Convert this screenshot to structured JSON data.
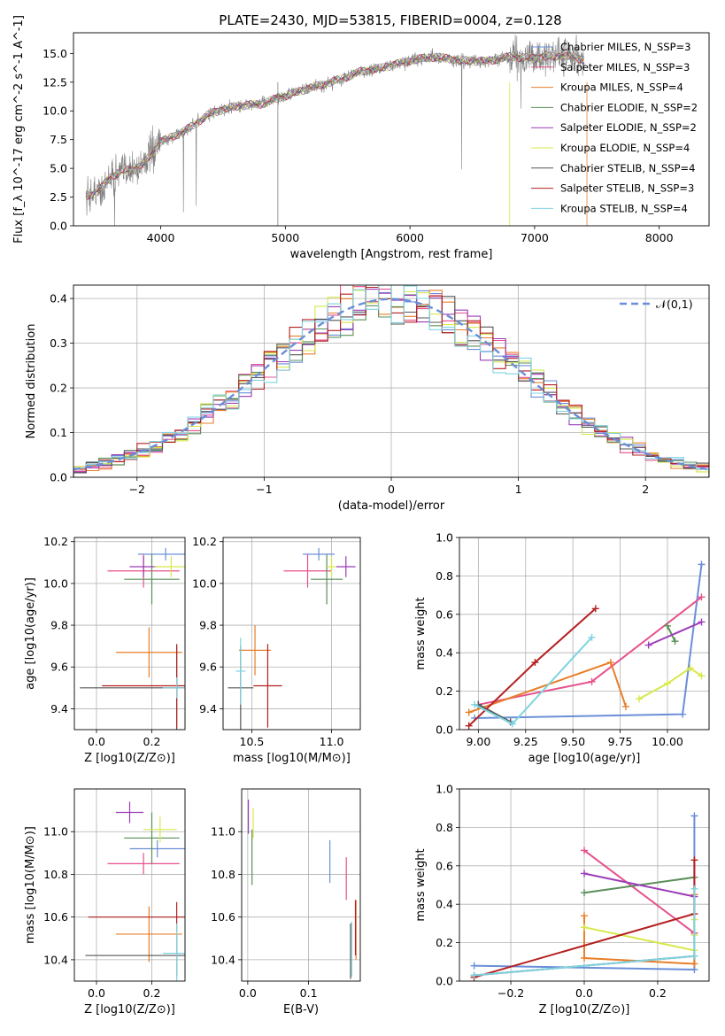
{
  "figure": {
    "title": "PLATE=2430, MJD=53815, FIBERID=0004, z=0.128"
  },
  "chart_data": [
    {
      "id": "spectrum",
      "type": "line",
      "title": "PLATE=2430, MJD=53815, FIBERID=0004, z=0.128",
      "xlabel": "wavelength [Angstrom, rest frame]",
      "ylabel": "Flux [f_λ 10^-17 erg cm^-2 s^-1 A^-1]",
      "xlim": [
        3300,
        8400
      ],
      "ylim": [
        0,
        16.8
      ],
      "xticks": [
        4000,
        5000,
        6000,
        7000,
        8000
      ],
      "yticks": [
        0.0,
        2.5,
        5.0,
        7.5,
        10.0,
        12.5,
        15.0
      ],
      "legend_position": "top-right",
      "data_color": "#808080",
      "data_envelope": {
        "x": [
          3400,
          3500,
          3600,
          3700,
          3800,
          3900,
          4000,
          4200,
          4400,
          4600,
          4800,
          5000,
          5200,
          5400,
          5600,
          5800,
          6000,
          6200,
          6400,
          6600,
          6800,
          7000,
          7200,
          7400
        ],
        "y": [
          2.6,
          3.0,
          4.3,
          4.8,
          4.9,
          5.9,
          7.3,
          8.3,
          9.8,
          10.4,
          10.6,
          11.3,
          12.0,
          12.6,
          13.4,
          13.8,
          14.4,
          14.7,
          14.4,
          14.3,
          14.7,
          14.6,
          14.8,
          14.5
        ]
      },
      "series": [
        {
          "name": "Chabrier MILES, N_SSP=3",
          "color": "#6a8fd8"
        },
        {
          "name": "Salpeter MILES, N_SSP=3",
          "color": "#e6508c"
        },
        {
          "name": "Kroupa MILES, N_SSP=4",
          "color": "#e87f2a"
        },
        {
          "name": "Chabrier ELODIE, N_SSP=2",
          "color": "#5a8f5a"
        },
        {
          "name": "Salpeter ELODIE, N_SSP=2",
          "color": "#9b3cb8"
        },
        {
          "name": "Kroupa ELODIE, N_SSP=4",
          "color": "#d8e84a"
        },
        {
          "name": "Chabrier STELIB, N_SSP=4",
          "color": "#555555"
        },
        {
          "name": "Salpeter STELIB, N_SSP=3",
          "color": "#b52020"
        },
        {
          "name": "Kroupa STELIB, N_SSP=4",
          "color": "#7fd3e0"
        }
      ]
    },
    {
      "id": "residual-hist",
      "type": "line",
      "xlabel": "(data-model)/error",
      "ylabel": "Normed distribution",
      "xlim": [
        -2.5,
        2.5
      ],
      "ylim": [
        0,
        0.43
      ],
      "xticks": [
        -2,
        -1,
        0,
        1,
        2
      ],
      "yticks": [
        0.0,
        0.1,
        0.2,
        0.3,
        0.4
      ],
      "grid": true,
      "legend": "𝒩(0,1)",
      "legend_position": "top-right",
      "series": [
        {
          "name": "𝒩(0,1)",
          "kind": "gaussian",
          "mean": 0,
          "sigma": 1,
          "color": "#6a8fd8"
        }
      ],
      "hist_bin_width": 0.1,
      "hist_colors": [
        "#6a8fd8",
        "#e6508c",
        "#e87f2a",
        "#5a8f5a",
        "#9b3cb8",
        "#d8e84a",
        "#555555",
        "#b52020",
        "#7fd3e0"
      ]
    },
    {
      "id": "age-vs-Z",
      "type": "scatter",
      "xlabel": "Z [log10(Z/Z⊙)]",
      "ylabel": "age  [log10(age/yr)]",
      "xlim": [
        -0.08,
        0.32
      ],
      "ylim": [
        9.3,
        10.22
      ],
      "xticks": [
        0.0,
        0.2
      ],
      "yticks": [
        9.4,
        9.6,
        9.8,
        10.0,
        10.2
      ],
      "grid": true,
      "points": [
        {
          "x": 0.25,
          "y": 10.14,
          "xerr": 0.1,
          "yerr": 0.03,
          "color": "#6a8fd8"
        },
        {
          "x": 0.17,
          "y": 10.06,
          "xerr": 0.13,
          "yerr": 0.08,
          "color": "#e6508c"
        },
        {
          "x": 0.19,
          "y": 9.67,
          "xerr": 0.12,
          "yerr": 0.12,
          "color": "#e87f2a"
        },
        {
          "x": 0.2,
          "y": 10.02,
          "xerr": 0.1,
          "yerr": 0.12,
          "color": "#5a8f5a"
        },
        {
          "x": 0.17,
          "y": 10.08,
          "xerr": 0.05,
          "yerr": 0.05,
          "color": "#9b3cb8"
        },
        {
          "x": 0.27,
          "y": 10.08,
          "xerr": 0.06,
          "yerr": 0.05,
          "color": "#d8e84a"
        },
        {
          "x": 0.29,
          "y": 9.5,
          "xerr": 0.35,
          "yerr": 0.2,
          "color": "#555555"
        },
        {
          "x": 0.29,
          "y": 9.51,
          "xerr": 0.27,
          "yerr": 0.2,
          "color": "#b52020"
        },
        {
          "x": 0.29,
          "y": 9.5,
          "xerr": 0.05,
          "yerr": 0.05,
          "color": "#7fd3e0"
        }
      ]
    },
    {
      "id": "age-vs-mass",
      "type": "scatter",
      "xlabel": "mass [log10(M/M⊙)]",
      "ylabel": "",
      "xlim": [
        10.32,
        11.18
      ],
      "ylim": [
        9.3,
        10.22
      ],
      "xticks": [
        10.5,
        11.0
      ],
      "yticks": [
        9.4,
        9.6,
        9.8,
        10.0,
        10.2
      ],
      "grid": true,
      "points": [
        {
          "x": 10.92,
          "y": 10.14,
          "xerr": 0.1,
          "yerr": 0.03,
          "color": "#6a8fd8"
        },
        {
          "x": 10.85,
          "y": 10.06,
          "xerr": 0.15,
          "yerr": 0.08,
          "color": "#e6508c"
        },
        {
          "x": 10.52,
          "y": 9.68,
          "xerr": 0.1,
          "yerr": 0.12,
          "color": "#e87f2a"
        },
        {
          "x": 10.97,
          "y": 10.02,
          "xerr": 0.1,
          "yerr": 0.12,
          "color": "#5a8f5a"
        },
        {
          "x": 11.09,
          "y": 10.08,
          "xerr": 0.06,
          "yerr": 0.05,
          "color": "#9b3cb8"
        },
        {
          "x": 11.0,
          "y": 10.08,
          "xerr": 0.03,
          "yerr": 0.05,
          "color": "#d8e84a"
        },
        {
          "x": 10.43,
          "y": 9.5,
          "xerr": 0.08,
          "yerr": 0.2,
          "color": "#555555"
        },
        {
          "x": 10.6,
          "y": 9.51,
          "xerr": 0.09,
          "yerr": 0.2,
          "color": "#b52020"
        },
        {
          "x": 10.43,
          "y": 9.58,
          "xerr": 0.03,
          "yerr": 0.16,
          "color": "#7fd3e0"
        }
      ]
    },
    {
      "id": "massweight-vs-age",
      "type": "line",
      "xlabel": "age  [log10(age/yr)]",
      "ylabel": "mass weight",
      "xlim": [
        8.9,
        10.22
      ],
      "ylim": [
        0,
        1.0
      ],
      "xticks": [
        9.0,
        9.25,
        9.5,
        9.75,
        10.0
      ],
      "yticks": [
        0.0,
        0.2,
        0.4,
        0.6,
        0.8,
        1.0
      ],
      "grid": true,
      "series": [
        {
          "color": "#6a8fd8",
          "x": [
            8.98,
            10.08,
            10.18
          ],
          "y": [
            0.06,
            0.08,
            0.86
          ]
        },
        {
          "color": "#e6508c",
          "x": [
            9.0,
            9.6,
            10.18
          ],
          "y": [
            0.13,
            0.25,
            0.69
          ]
        },
        {
          "color": "#e87f2a",
          "x": [
            8.95,
            9.7,
            9.78
          ],
          "y": [
            0.09,
            0.35,
            0.12
          ]
        },
        {
          "color": "#5a8f5a",
          "x": [
            10.0,
            10.04
          ],
          "y": [
            0.54,
            0.46
          ]
        },
        {
          "color": "#9b3cb8",
          "x": [
            9.9,
            10.18
          ],
          "y": [
            0.44,
            0.56
          ]
        },
        {
          "color": "#d8e84a",
          "x": [
            9.85,
            10.0,
            10.12,
            10.18
          ],
          "y": [
            0.16,
            0.24,
            0.32,
            0.28
          ]
        },
        {
          "color": "#555555",
          "x": [
            9.0,
            9.17
          ],
          "y": [
            0.13,
            0.04
          ]
        },
        {
          "color": "#b52020",
          "x": [
            8.95,
            9.3,
            9.62
          ],
          "y": [
            0.02,
            0.35,
            0.63
          ]
        },
        {
          "color": "#7fd3e0",
          "x": [
            8.98,
            9.18,
            9.6
          ],
          "y": [
            0.13,
            0.03,
            0.48
          ]
        }
      ]
    },
    {
      "id": "mass-vs-Z",
      "type": "scatter",
      "xlabel": "Z [log10(Z/Z⊙)]",
      "ylabel": "mass [log10(M/M⊙)]",
      "xlim": [
        -0.08,
        0.32
      ],
      "ylim": [
        10.3,
        11.2
      ],
      "xticks": [
        0.0,
        0.2
      ],
      "yticks": [
        10.4,
        10.6,
        10.8,
        11.0
      ],
      "grid": true,
      "points": [
        {
          "x": 0.22,
          "y": 10.92,
          "xerr": 0.1,
          "yerr": 0.04,
          "color": "#6a8fd8"
        },
        {
          "x": 0.17,
          "y": 10.85,
          "xerr": 0.13,
          "yerr": 0.05,
          "color": "#e6508c"
        },
        {
          "x": 0.19,
          "y": 10.52,
          "xerr": 0.12,
          "yerr": 0.13,
          "color": "#e87f2a"
        },
        {
          "x": 0.2,
          "y": 10.97,
          "xerr": 0.1,
          "yerr": 0.12,
          "color": "#5a8f5a"
        },
        {
          "x": 0.12,
          "y": 11.09,
          "xerr": 0.05,
          "yerr": 0.05,
          "color": "#9b3cb8"
        },
        {
          "x": 0.23,
          "y": 11.01,
          "xerr": 0.06,
          "yerr": 0.06,
          "color": "#d8e84a"
        },
        {
          "x": 0.29,
          "y": 10.42,
          "xerr": 0.33,
          "yerr": 0.1,
          "color": "#555555"
        },
        {
          "x": 0.29,
          "y": 10.6,
          "xerr": 0.32,
          "yerr": 0.07,
          "color": "#b52020"
        },
        {
          "x": 0.29,
          "y": 10.43,
          "xerr": 0.05,
          "yerr": 0.14,
          "color": "#7fd3e0"
        }
      ]
    },
    {
      "id": "mass-vs-EBV",
      "type": "scatter",
      "xlabel": "E(B-V)",
      "ylabel": "",
      "xlim": [
        -0.01,
        0.185
      ],
      "ylim": [
        10.3,
        11.2
      ],
      "xticks": [
        0.0,
        0.1
      ],
      "yticks": [
        10.4,
        10.6,
        10.8,
        11.0
      ],
      "grid": true,
      "points": [
        {
          "x": 0.135,
          "y": 10.86,
          "xerr": 0.0,
          "yerr": 0.1,
          "color": "#6a8fd8"
        },
        {
          "x": 0.162,
          "y": 10.78,
          "xerr": 0.0,
          "yerr": 0.1,
          "color": "#e6508c"
        },
        {
          "x": 0.178,
          "y": 10.54,
          "xerr": 0.0,
          "yerr": 0.14,
          "color": "#e87f2a"
        },
        {
          "x": 0.007,
          "y": 10.88,
          "xerr": 0.0,
          "yerr": 0.13,
          "color": "#5a8f5a"
        },
        {
          "x": 0.001,
          "y": 11.07,
          "xerr": 0.0,
          "yerr": 0.08,
          "color": "#9b3cb8"
        },
        {
          "x": 0.009,
          "y": 11.04,
          "xerr": 0.0,
          "yerr": 0.07,
          "color": "#d8e84a"
        },
        {
          "x": 0.169,
          "y": 10.44,
          "xerr": 0.0,
          "yerr": 0.13,
          "color": "#555555"
        },
        {
          "x": 0.177,
          "y": 10.55,
          "xerr": 0.0,
          "yerr": 0.13,
          "color": "#b52020"
        },
        {
          "x": 0.171,
          "y": 10.45,
          "xerr": 0.0,
          "yerr": 0.13,
          "color": "#7fd3e0"
        }
      ]
    },
    {
      "id": "massweight-vs-Z",
      "type": "line",
      "xlabel": "Z [log10(Z/Z⊙)]",
      "ylabel": "mass weight",
      "xlim": [
        -0.34,
        0.34
      ],
      "ylim": [
        0,
        1.0
      ],
      "xticks": [
        -0.2,
        0.0,
        0.2
      ],
      "yticks": [
        0.0,
        0.2,
        0.4,
        0.6,
        0.8,
        1.0
      ],
      "grid": true,
      "series": [
        {
          "color": "#6a8fd8",
          "x": [
            -0.3,
            0.3,
            0.3
          ],
          "y": [
            0.08,
            0.06,
            0.86
          ]
        },
        {
          "color": "#e6508c",
          "x": [
            0.0,
            0.3
          ],
          "y": [
            0.68,
            0.25
          ]
        },
        {
          "color": "#e87f2a",
          "x": [
            0.0,
            0.0,
            0.3,
            0.3
          ],
          "y": [
            0.34,
            0.12,
            0.09,
            0.45
          ]
        },
        {
          "color": "#5a8f5a",
          "x": [
            0.0,
            0.3
          ],
          "y": [
            0.46,
            0.54
          ]
        },
        {
          "color": "#9b3cb8",
          "x": [
            0.0,
            0.3
          ],
          "y": [
            0.56,
            0.44
          ]
        },
        {
          "color": "#d8e84a",
          "x": [
            0.0,
            0.3,
            0.3,
            0.3
          ],
          "y": [
            0.28,
            0.16,
            0.24,
            0.32
          ]
        },
        {
          "color": "#555555",
          "x": [
            -0.3,
            0.3
          ],
          "y": [
            0.03,
            0.13
          ]
        },
        {
          "color": "#b52020",
          "x": [
            -0.3,
            0.3,
            0.3
          ],
          "y": [
            0.02,
            0.35,
            0.63
          ]
        },
        {
          "color": "#7fd3e0",
          "x": [
            -0.3,
            0.3,
            0.3
          ],
          "y": [
            0.03,
            0.13,
            0.48
          ]
        }
      ]
    }
  ]
}
